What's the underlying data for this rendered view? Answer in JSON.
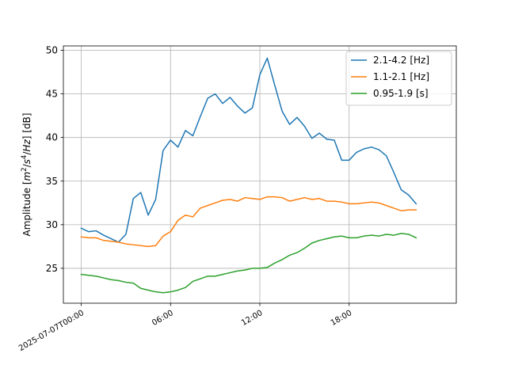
{
  "chart_data": {
    "type": "line",
    "ylabel_parts": [
      "Amplitude [",
      "m",
      "2",
      "/",
      "s",
      "4",
      "/",
      "Hz",
      "] [dB]"
    ],
    "x_start": "2025-07-07T00:00",
    "x_step_minutes": 30,
    "xlim": [
      "2025-07-06T22:48",
      "2025-07-08T01:12"
    ],
    "ylim": [
      21,
      50.5
    ],
    "x_ticks": [
      {
        "value": "2025-07-07T00:00",
        "label": "2025-07-07T00:00"
      },
      {
        "value": "2025-07-07T06:00",
        "label": "06:00"
      },
      {
        "value": "2025-07-07T12:00",
        "label": "12:00"
      },
      {
        "value": "2025-07-07T18:00",
        "label": "18:00"
      }
    ],
    "y_ticks": [
      {
        "value": 25,
        "label": "25"
      },
      {
        "value": 30,
        "label": "30"
      },
      {
        "value": 35,
        "label": "35"
      },
      {
        "value": 40,
        "label": "40"
      },
      {
        "value": 45,
        "label": "45"
      },
      {
        "value": 50,
        "label": "50"
      }
    ],
    "grid": true,
    "legend_position": "top-right",
    "series": [
      {
        "name": "2.1-4.2 [Hz]",
        "color": "#1f77b4",
        "values": [
          29.6,
          29.2,
          29.3,
          28.8,
          28.4,
          28.0,
          28.9,
          33.0,
          33.7,
          31.1,
          32.9,
          38.5,
          39.7,
          38.9,
          40.8,
          40.2,
          42.4,
          44.5,
          45.0,
          43.9,
          44.6,
          43.6,
          42.8,
          43.4,
          47.2,
          49.1,
          46.0,
          43.0,
          41.5,
          42.3,
          41.3,
          39.9,
          40.5,
          39.8,
          39.7,
          37.4,
          37.4,
          38.3,
          38.7,
          38.9,
          38.6,
          37.9,
          36.0,
          34.0,
          33.4,
          32.4
        ]
      },
      {
        "name": "1.1-2.1 [Hz]",
        "color": "#ff7f0e",
        "values": [
          28.6,
          28.5,
          28.5,
          28.2,
          28.1,
          28.0,
          27.8,
          27.7,
          27.6,
          27.5,
          27.6,
          28.7,
          29.2,
          30.5,
          31.1,
          30.9,
          31.9,
          32.2,
          32.5,
          32.8,
          32.9,
          32.7,
          33.1,
          33.0,
          32.9,
          33.2,
          33.2,
          33.1,
          32.7,
          32.9,
          33.1,
          32.9,
          33.0,
          32.7,
          32.7,
          32.6,
          32.4,
          32.4,
          32.5,
          32.6,
          32.5,
          32.2,
          31.9,
          31.6,
          31.7,
          31.7
        ]
      },
      {
        "name": "0.95-1.9 [s]",
        "color": "#2ca02c",
        "values": [
          24.3,
          24.2,
          24.1,
          23.9,
          23.7,
          23.6,
          23.4,
          23.3,
          22.7,
          22.5,
          22.3,
          22.2,
          22.3,
          22.5,
          22.8,
          23.5,
          23.8,
          24.1,
          24.1,
          24.3,
          24.5,
          24.7,
          24.8,
          25.0,
          25.0,
          25.1,
          25.6,
          26.0,
          26.5,
          26.8,
          27.3,
          27.9,
          28.2,
          28.4,
          28.6,
          28.7,
          28.5,
          28.5,
          28.7,
          28.8,
          28.7,
          28.9,
          28.8,
          29.0,
          28.9,
          28.5
        ]
      }
    ]
  }
}
